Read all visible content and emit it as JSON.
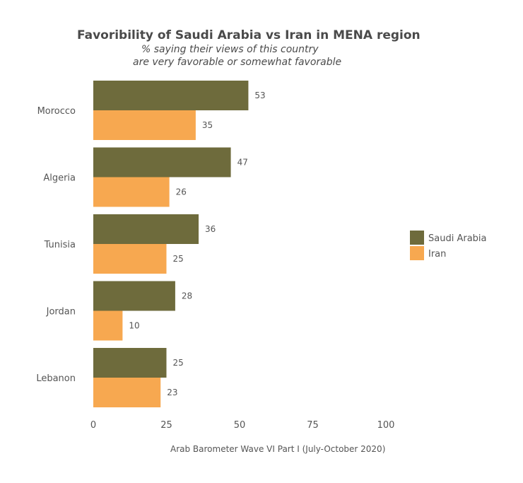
{
  "chart_data": {
    "type": "bar",
    "orientation": "horizontal",
    "title": "Favoribility of Saudi Arabia vs Iran in MENA region",
    "subtitle": [
      "% saying their views of this country",
      "are very favorable or somewhat favorable"
    ],
    "caption": "Arab Barometer Wave VI Part I (July-October 2020)",
    "categories": [
      "Morocco",
      "Algeria",
      "Tunisia",
      "Jordan",
      "Lebanon"
    ],
    "series": [
      {
        "name": "Saudi Arabia",
        "color": "#6e6b3c",
        "values": [
          53,
          47,
          36,
          28,
          25
        ]
      },
      {
        "name": "Iran",
        "color": "#f7a850",
        "values": [
          35,
          26,
          25,
          10,
          23
        ]
      }
    ],
    "x_ticks": [
      0,
      25,
      50,
      75,
      100
    ],
    "xlim": [
      0,
      100
    ],
    "grid": false,
    "legend_position": "right"
  }
}
